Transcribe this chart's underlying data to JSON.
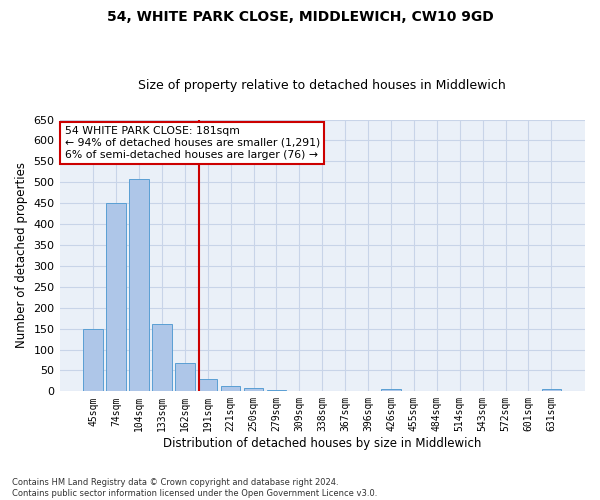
{
  "title": "54, WHITE PARK CLOSE, MIDDLEWICH, CW10 9GD",
  "subtitle": "Size of property relative to detached houses in Middlewich",
  "xlabel": "Distribution of detached houses by size in Middlewich",
  "ylabel": "Number of detached properties",
  "categories": [
    "45sqm",
    "74sqm",
    "104sqm",
    "133sqm",
    "162sqm",
    "191sqm",
    "221sqm",
    "250sqm",
    "279sqm",
    "309sqm",
    "338sqm",
    "367sqm",
    "396sqm",
    "426sqm",
    "455sqm",
    "484sqm",
    "514sqm",
    "543sqm",
    "572sqm",
    "601sqm",
    "631sqm"
  ],
  "values": [
    148,
    450,
    507,
    160,
    67,
    30,
    13,
    8,
    4,
    0,
    0,
    0,
    0,
    6,
    0,
    0,
    0,
    0,
    0,
    0,
    5
  ],
  "bar_color": "#aec6e8",
  "bar_edge_color": "#5a9fd4",
  "vline_x": 4.63,
  "vline_color": "#cc0000",
  "annotation_text": "54 WHITE PARK CLOSE: 181sqm\n← 94% of detached houses are smaller (1,291)\n6% of semi-detached houses are larger (76) →",
  "annotation_box_color": "#ffffff",
  "annotation_box_edge_color": "#cc0000",
  "ylim": [
    0,
    650
  ],
  "yticks": [
    0,
    50,
    100,
    150,
    200,
    250,
    300,
    350,
    400,
    450,
    500,
    550,
    600,
    650
  ],
  "footnote": "Contains HM Land Registry data © Crown copyright and database right 2024.\nContains public sector information licensed under the Open Government Licence v3.0.",
  "background_color": "#ffffff",
  "plot_bg_color": "#eaf0f8",
  "grid_color": "#c8d4e8",
  "title_fontsize": 10,
  "subtitle_fontsize": 9,
  "xlabel_fontsize": 8.5,
  "ylabel_fontsize": 8.5,
  "annotation_fontsize": 7.8
}
